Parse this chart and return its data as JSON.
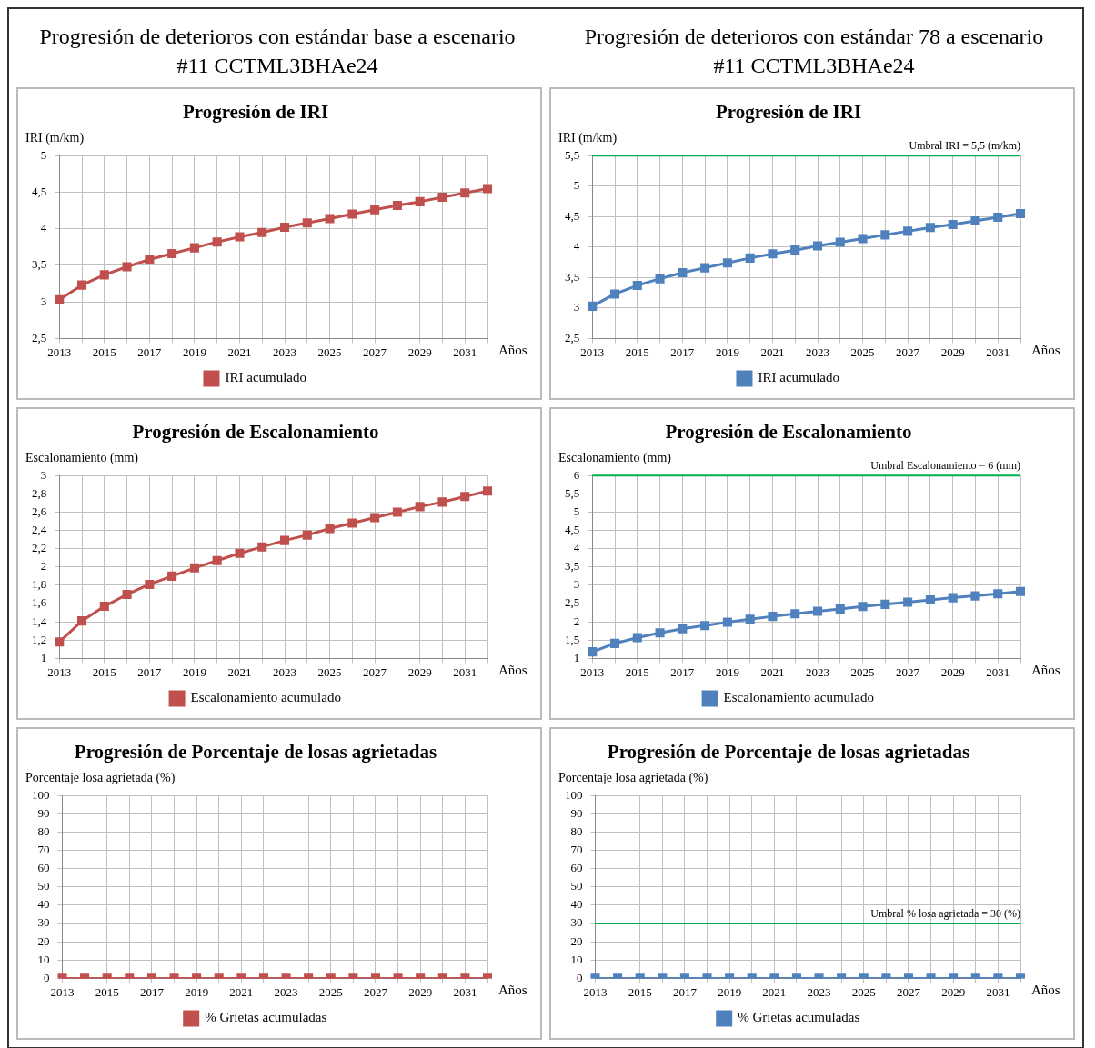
{
  "chart_data": [
    {
      "type": "other",
      "title": "Progresión de deterioros con estándar base a escenario #11 CCTML3BHAe24"
    },
    {
      "type": "other",
      "title": "Progresión de deterioros con estándar 78 a escenario #11 CCTML3BHAe24"
    },
    {
      "type": "line",
      "title": "Progresión de IRI",
      "ylabel": "IRI (m/km)",
      "xlabel": "Años",
      "categories": [
        "2013",
        null,
        "2015",
        null,
        "2017",
        null,
        "2019",
        null,
        "2021",
        null,
        "2023",
        null,
        "2025",
        null,
        "2027",
        null,
        "2029",
        null,
        "2031",
        null
      ],
      "series": [
        {
          "name": "IRI acumulado",
          "color": "#c0504d",
          "values": [
            3.03,
            3.23,
            3.37,
            3.48,
            3.58,
            3.66,
            3.74,
            3.82,
            3.89,
            3.95,
            4.02,
            4.08,
            4.14,
            4.2,
            4.26,
            4.32,
            4.37,
            4.43,
            4.49,
            4.55
          ]
        }
      ],
      "ylim": [
        2.5,
        5
      ],
      "yticks": [
        {
          "value": 2.5,
          "label": "2,5"
        },
        3,
        {
          "value": 3.5,
          "label": "3,5"
        },
        4,
        {
          "value": 4.5,
          "label": "4,5"
        },
        5
      ],
      "grid": true,
      "legend": "bottom",
      "marker": "square",
      "line_style": "solid"
    },
    {
      "type": "line",
      "title": "Progresión de IRI",
      "ylabel": "IRI (m/km)",
      "xlabel": "Años",
      "categories": [
        "2013",
        null,
        "2015",
        null,
        "2017",
        null,
        "2019",
        null,
        "2021",
        null,
        "2023",
        null,
        "2025",
        null,
        "2027",
        null,
        "2029",
        null,
        "2031",
        null
      ],
      "series": [
        {
          "name": "IRI acumulado",
          "color": "#4f81bd",
          "values": [
            3.03,
            3.23,
            3.37,
            3.48,
            3.58,
            3.66,
            3.74,
            3.82,
            3.89,
            3.95,
            4.02,
            4.08,
            4.14,
            4.2,
            4.26,
            4.32,
            4.37,
            4.43,
            4.49,
            4.55
          ]
        }
      ],
      "ylim": [
        2.5,
        5.5
      ],
      "yticks": [
        {
          "value": 2.5,
          "label": "2,5"
        },
        3,
        {
          "value": 3.5,
          "label": "3,5"
        },
        4,
        {
          "value": 4.5,
          "label": "4,5"
        },
        5,
        {
          "value": 5.5,
          "label": "5,5"
        }
      ],
      "ref_lines": [
        {
          "axis": "y",
          "value": 5.5,
          "label": "Umbral IRI = 5,5 (m/km)",
          "color": "#00b050"
        }
      ],
      "grid": true,
      "legend": "bottom",
      "marker": "square",
      "line_style": "solid"
    },
    {
      "type": "line",
      "title": "Progresión de Escalonamiento",
      "ylabel": "Escalonamiento (mm)",
      "xlabel": "Años",
      "categories": [
        "2013",
        null,
        "2015",
        null,
        "2017",
        null,
        "2019",
        null,
        "2021",
        null,
        "2023",
        null,
        "2025",
        null,
        "2027",
        null,
        "2029",
        null,
        "2031",
        null
      ],
      "series": [
        {
          "name": "Escalonamiento acumulado",
          "color": "#c0504d",
          "values": [
            1.18,
            1.41,
            1.57,
            1.7,
            1.81,
            1.9,
            1.99,
            2.07,
            2.15,
            2.22,
            2.29,
            2.35,
            2.42,
            2.48,
            2.54,
            2.6,
            2.66,
            2.71,
            2.77,
            2.83
          ]
        }
      ],
      "ylim": [
        1,
        3
      ],
      "yticks": [
        1,
        {
          "value": 1.2,
          "label": "1,2"
        },
        {
          "value": 1.4,
          "label": "1,4"
        },
        {
          "value": 1.6,
          "label": "1,6"
        },
        {
          "value": 1.8,
          "label": "1,8"
        },
        2,
        {
          "value": 2.2,
          "label": "2,2"
        },
        {
          "value": 2.4,
          "label": "2,4"
        },
        {
          "value": 2.6,
          "label": "2,6"
        },
        {
          "value": 2.8,
          "label": "2,8"
        },
        3
      ],
      "grid": true,
      "legend": "bottom",
      "marker": "square",
      "line_style": "solid"
    },
    {
      "type": "line",
      "title": "Progresión de Escalonamiento",
      "ylabel": "Escalonamiento (mm)",
      "xlabel": "Años",
      "categories": [
        "2013",
        null,
        "2015",
        null,
        "2017",
        null,
        "2019",
        null,
        "2021",
        null,
        "2023",
        null,
        "2025",
        null,
        "2027",
        null,
        "2029",
        null,
        "2031",
        null
      ],
      "series": [
        {
          "name": "Escalonamiento acumulado",
          "color": "#4f81bd",
          "values": [
            1.18,
            1.41,
            1.57,
            1.7,
            1.81,
            1.9,
            1.99,
            2.07,
            2.15,
            2.22,
            2.29,
            2.35,
            2.42,
            2.48,
            2.54,
            2.6,
            2.66,
            2.71,
            2.77,
            2.83
          ]
        }
      ],
      "ylim": [
        1,
        6
      ],
      "yticks": [
        1,
        {
          "value": 1.5,
          "label": "1,5"
        },
        2,
        {
          "value": 2.5,
          "label": "2,5"
        },
        3,
        {
          "value": 3.5,
          "label": "3,5"
        },
        4,
        {
          "value": 4.5,
          "label": "4,5"
        },
        5,
        {
          "value": 5.5,
          "label": "5,5"
        },
        6
      ],
      "ref_lines": [
        {
          "axis": "y",
          "value": 6,
          "label": "Umbral Escalonamiento = 6 (mm)",
          "color": "#00b050"
        }
      ],
      "grid": true,
      "legend": "bottom",
      "marker": "square",
      "line_style": "solid"
    },
    {
      "type": "line",
      "title": "Progresión de Porcentaje de losas agrietadas",
      "ylabel": "Porcentaje losa agrietada (%)",
      "xlabel": "Años",
      "categories": [
        "2013",
        null,
        "2015",
        null,
        "2017",
        null,
        "2019",
        null,
        "2021",
        null,
        "2023",
        null,
        "2025",
        null,
        "2027",
        null,
        "2029",
        null,
        "2031",
        null
      ],
      "series": [
        {
          "name": "% Grietas acumuladas",
          "color": "#c0504d",
          "values": [
            0,
            0,
            0,
            0,
            0,
            0,
            0,
            0,
            0,
            0,
            0,
            0,
            0,
            0,
            0,
            0,
            0,
            0,
            0,
            0
          ]
        }
      ],
      "ylim": [
        0,
        100
      ],
      "yticks": [
        0,
        10,
        20,
        30,
        40,
        50,
        60,
        70,
        80,
        90,
        100
      ],
      "grid": true,
      "legend": "bottom",
      "marker": "square",
      "line_style": "solid"
    },
    {
      "type": "line",
      "title": "Progresión de Porcentaje de losas agrietadas",
      "ylabel": "Porcentaje losa agrietada (%)",
      "xlabel": "Años",
      "categories": [
        "2013",
        null,
        "2015",
        null,
        "2017",
        null,
        "2019",
        null,
        "2021",
        null,
        "2023",
        null,
        "2025",
        null,
        "2027",
        null,
        "2029",
        null,
        "2031",
        null
      ],
      "series": [
        {
          "name": "% Grietas acumuladas",
          "color": "#4f81bd",
          "values": [
            0,
            0,
            0,
            0,
            0,
            0,
            0,
            0,
            0,
            0,
            0,
            0,
            0,
            0,
            0,
            0,
            0,
            0,
            0,
            0
          ]
        }
      ],
      "ylim": [
        0,
        100
      ],
      "yticks": [
        0,
        10,
        20,
        30,
        40,
        50,
        60,
        70,
        80,
        90,
        100
      ],
      "ref_lines": [
        {
          "axis": "y",
          "value": 30,
          "label": "Umbral % losa agrietada = 30 (%)",
          "color": "#00b050"
        }
      ],
      "grid": true,
      "legend": "bottom",
      "marker": "square",
      "line_style": "solid"
    }
  ]
}
